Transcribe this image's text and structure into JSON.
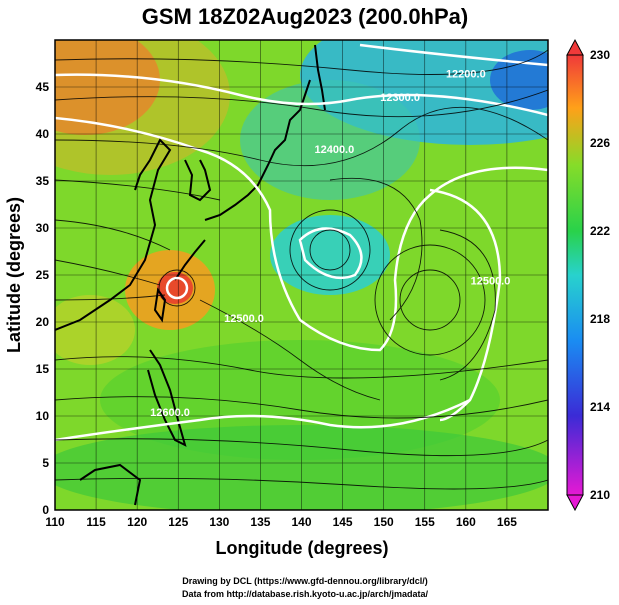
{
  "chart_data": {
    "type": "heatmap",
    "title": "GSM 18Z02Aug2023 (200.0hPa)",
    "xlabel": "Longitude (degrees)",
    "ylabel": "Latitude  (degrees)",
    "xlim": [
      110,
      170
    ],
    "ylim": [
      0,
      50
    ],
    "x_ticks": [
      110,
      115,
      120,
      125,
      130,
      135,
      140,
      145,
      150,
      155,
      160,
      165
    ],
    "y_ticks": [
      0,
      5,
      10,
      15,
      20,
      25,
      30,
      35,
      40,
      45
    ],
    "grid": true,
    "colorbar": {
      "min": 210,
      "max": 230,
      "ticks": [
        210,
        214,
        218,
        222,
        226,
        230
      ],
      "colors": [
        "#e619d4",
        "#3b2bd6",
        "#1a8cf2",
        "#28d2cd",
        "#29d24a",
        "#86dc29",
        "#ffa019",
        "#f03a3a"
      ]
    },
    "contour_labels": [
      {
        "text": "12200.0",
        "lon": 160,
        "lat": 46
      },
      {
        "text": "12300.0",
        "lon": 152,
        "lat": 43.5
      },
      {
        "text": "12400.0",
        "lon": 144,
        "lat": 38
      },
      {
        "text": "12500.0",
        "lon": 133,
        "lat": 20
      },
      {
        "text": "12600.0",
        "lon": 124,
        "lat": 10
      },
      {
        "text": "12500.0",
        "lon": 163,
        "lat": 24
      }
    ]
  },
  "credits": {
    "line1": "Drawing by DCL (https://www.gfd-dennou.org/library/dcl/)",
    "line2": "Data from http://database.rish.kyoto-u.ac.jp/arch/jmadata/"
  }
}
